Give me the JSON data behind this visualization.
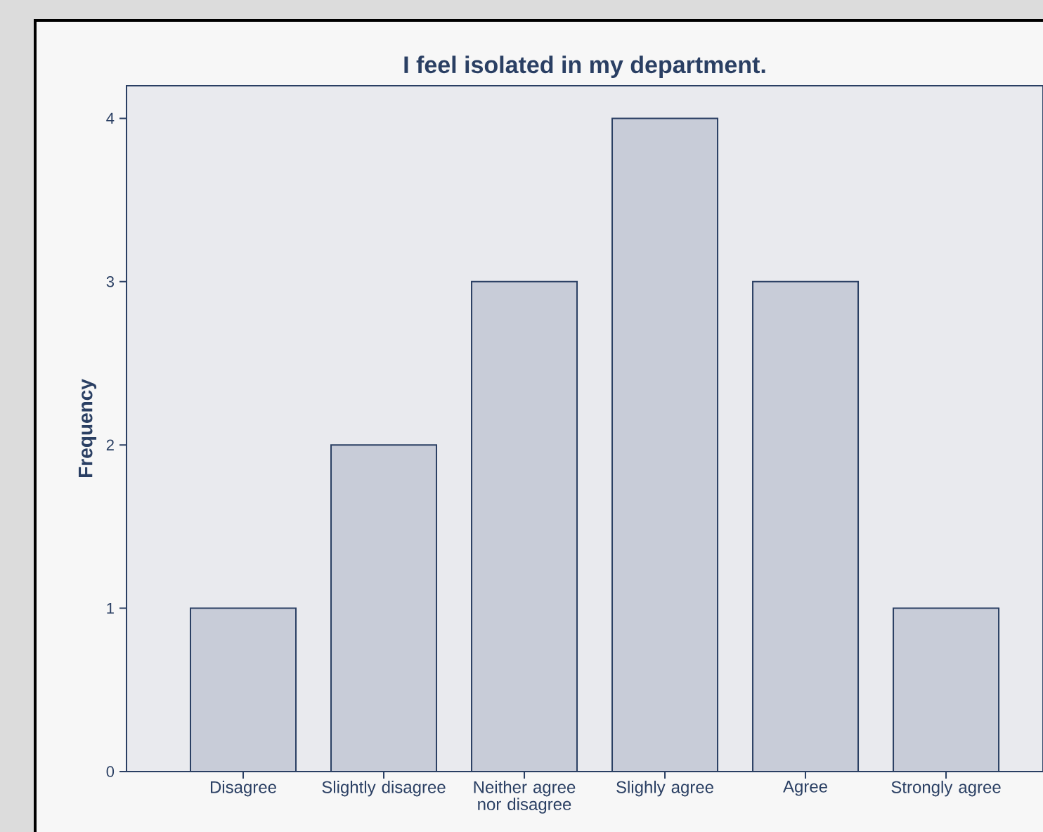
{
  "chart_data": {
    "type": "bar",
    "title": "I feel isolated in my department.",
    "ylabel": "Frequency",
    "categories": [
      "Disagree",
      "Slightly disagree",
      "Neither agree nor disagree",
      "Slighly agree",
      "Agree",
      "Strongly agree"
    ],
    "values": [
      1,
      2,
      3,
      4,
      3,
      1
    ],
    "color": "#c8ccd8",
    "ylim": [
      0,
      4.2
    ],
    "yticks": [
      0,
      1,
      2,
      3,
      4
    ],
    "grid": false
  }
}
